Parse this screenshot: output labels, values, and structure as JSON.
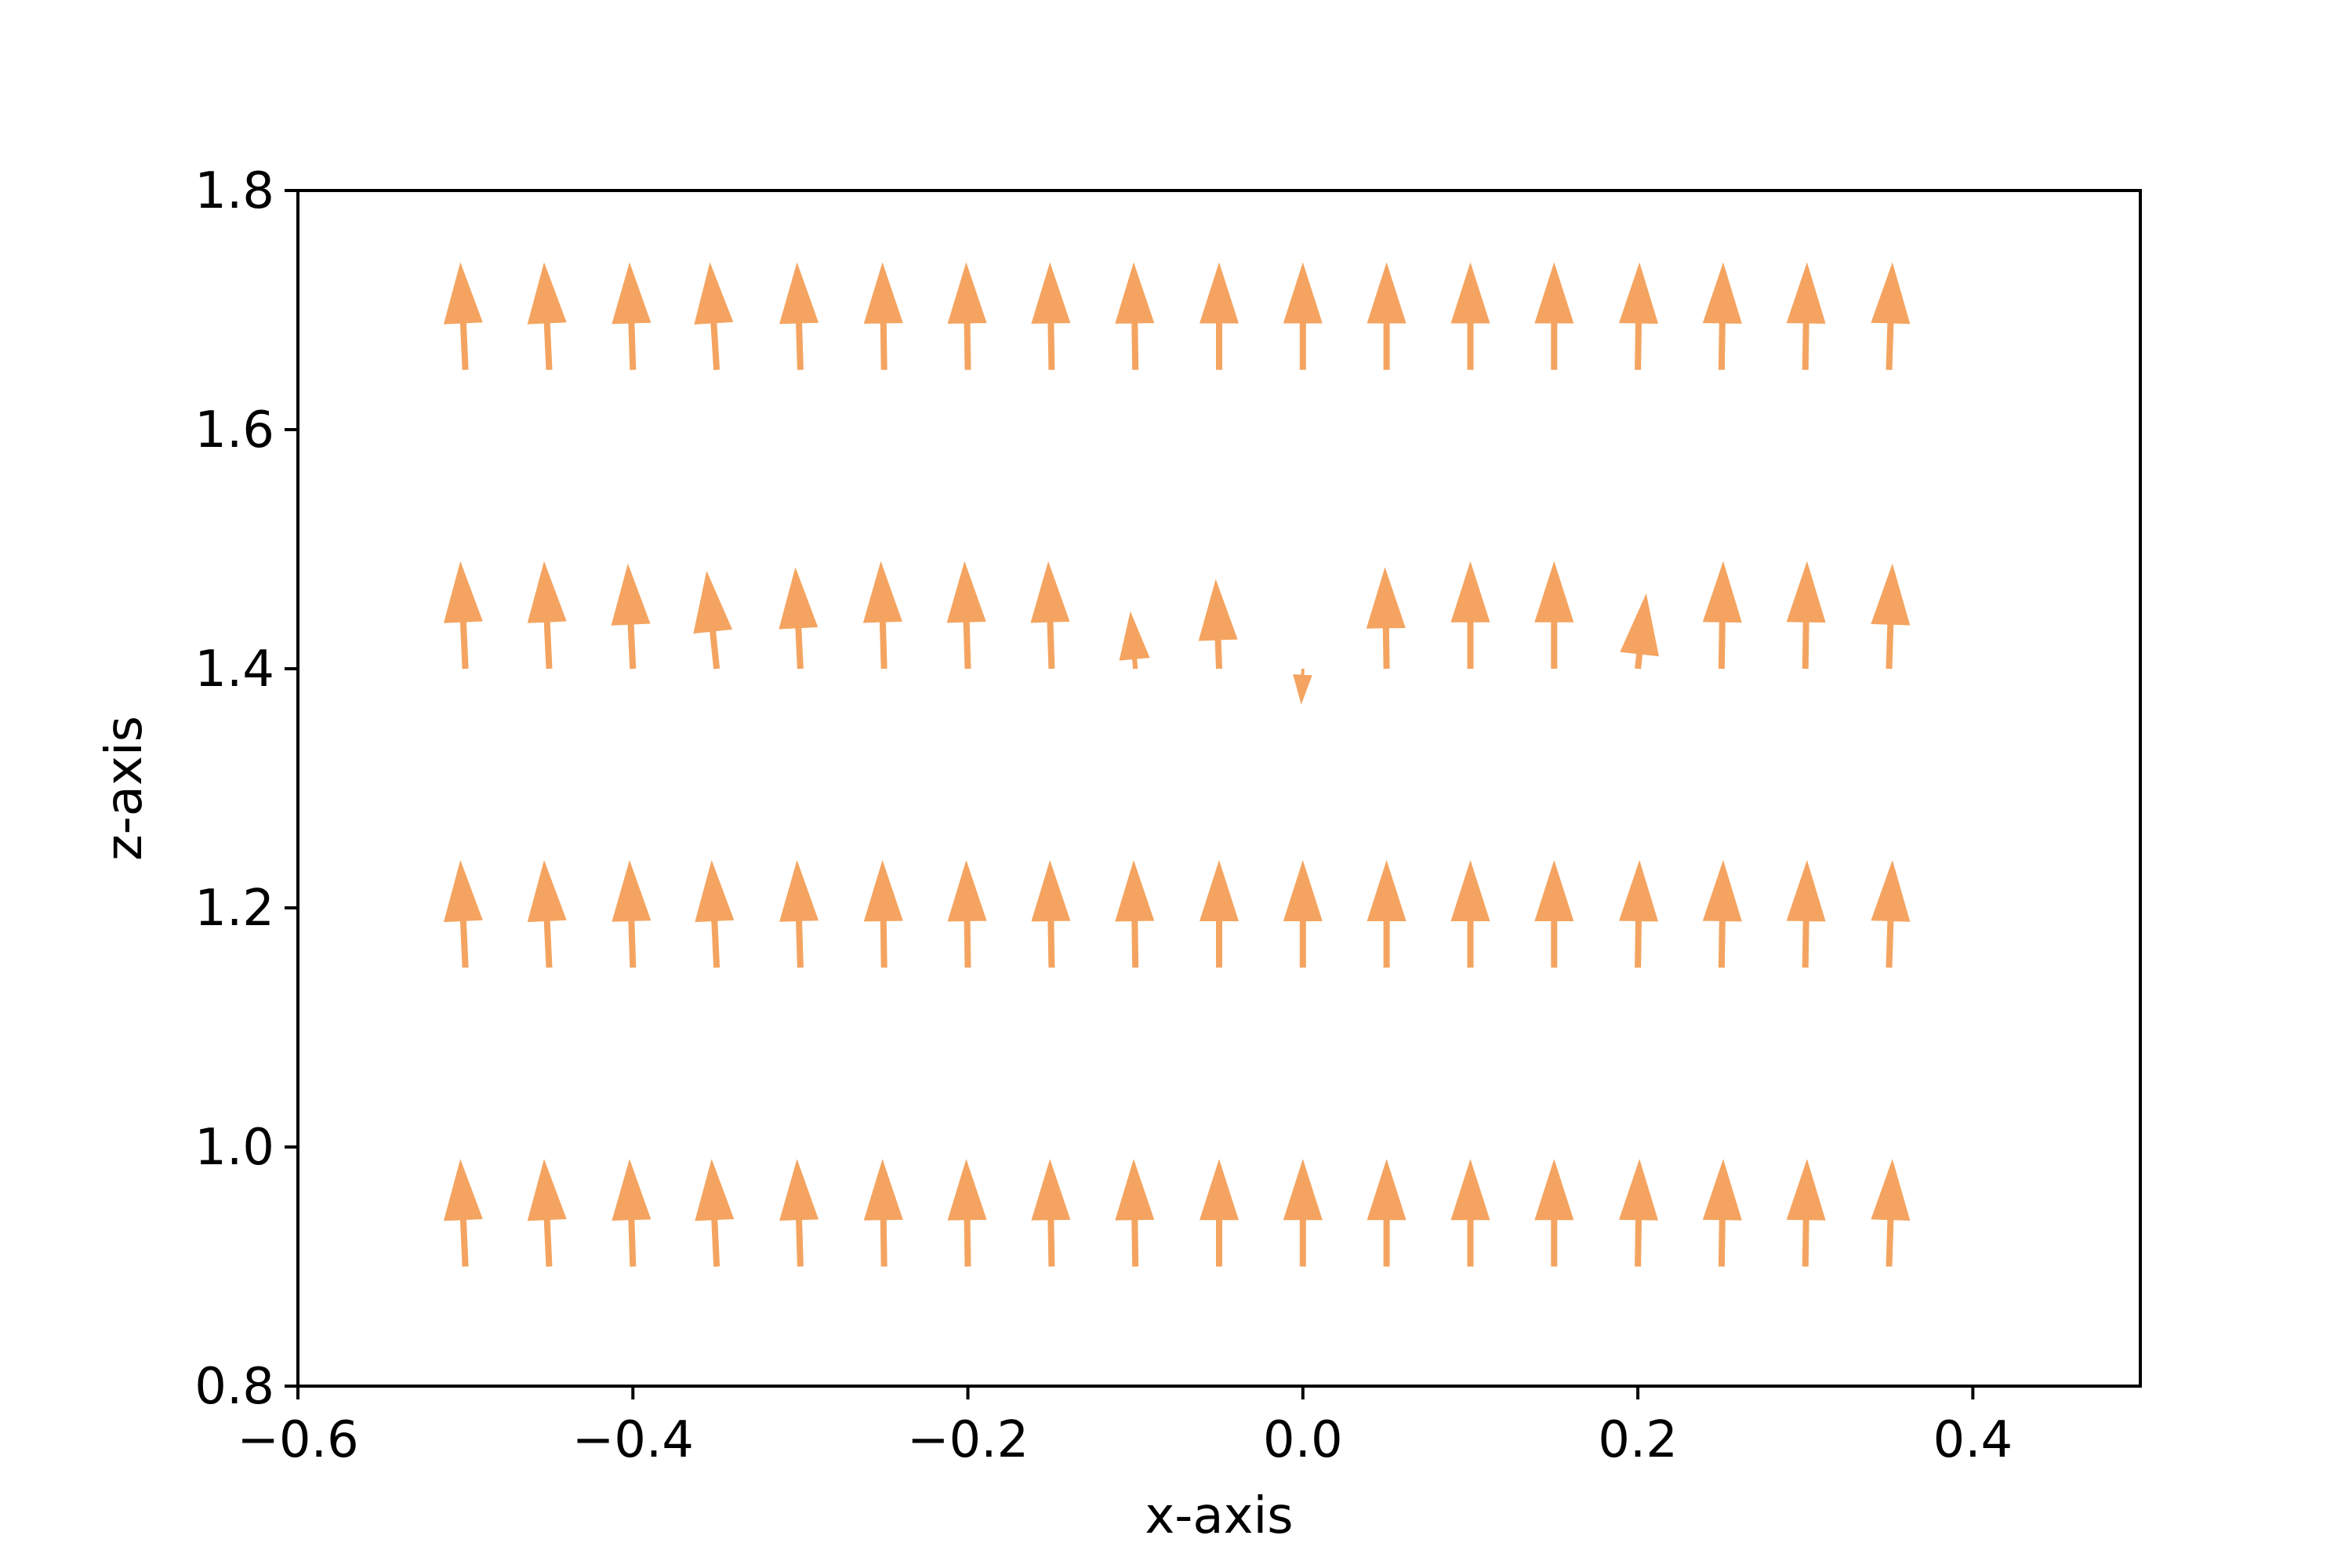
{
  "chart_data": {
    "type": "quiver",
    "xlabel": "x-axis",
    "ylabel": "z-axis",
    "xlim": [
      -0.6,
      0.5
    ],
    "ylim": [
      0.8,
      1.8
    ],
    "xticks": [
      -0.6,
      -0.4,
      -0.2,
      0.0,
      0.2,
      0.4
    ],
    "yticks": [
      0.8,
      1.0,
      1.2,
      1.4,
      1.6,
      1.8
    ],
    "xtick_labels": [
      "−0.6",
      "−0.4",
      "−0.2",
      "0.0",
      "0.2",
      "0.4"
    ],
    "ytick_labels": [
      "0.8",
      "1.0",
      "1.2",
      "1.4",
      "1.6",
      "1.8"
    ],
    "grid": false,
    "arrow_color": "#f4a460",
    "x": [
      -0.5,
      -0.45,
      -0.4,
      -0.35,
      -0.3,
      -0.25,
      -0.2,
      -0.15,
      -0.1,
      -0.05,
      0.0,
      0.05,
      0.1,
      0.15,
      0.2,
      0.25,
      0.3,
      0.35
    ],
    "z": [
      0.9,
      1.15,
      1.4,
      1.65
    ],
    "rows": [
      {
        "z": 0.9,
        "u": [
          -0.003,
          -0.003,
          -0.002,
          -0.003,
          -0.002,
          -0.001,
          -0.001,
          -0.001,
          -0.001,
          0.0,
          0.0,
          0.0,
          0.0,
          0.0,
          0.001,
          0.001,
          0.001,
          0.002
        ],
        "w": [
          0.09,
          0.09,
          0.09,
          0.09,
          0.09,
          0.09,
          0.09,
          0.09,
          0.09,
          0.09,
          0.09,
          0.09,
          0.09,
          0.09,
          0.09,
          0.09,
          0.09,
          0.09
        ]
      },
      {
        "z": 1.15,
        "u": [
          -0.003,
          -0.003,
          -0.002,
          -0.003,
          -0.002,
          -0.001,
          -0.001,
          -0.001,
          -0.001,
          0.0,
          0.0,
          0.0,
          0.0,
          0.0,
          0.001,
          0.001,
          0.001,
          0.002
        ],
        "w": [
          0.09,
          0.09,
          0.09,
          0.09,
          0.09,
          0.09,
          0.09,
          0.09,
          0.09,
          0.09,
          0.09,
          0.09,
          0.09,
          0.09,
          0.09,
          0.09,
          0.09,
          0.09
        ]
      },
      {
        "z": 1.4,
        "u": [
          -0.003,
          -0.003,
          -0.003,
          -0.006,
          -0.003,
          -0.002,
          -0.002,
          -0.002,
          -0.003,
          -0.002,
          -0.001,
          -0.001,
          0.0,
          0.0,
          0.005,
          0.001,
          0.001,
          0.002
        ],
        "w": [
          0.09,
          0.09,
          0.088,
          0.082,
          0.085,
          0.09,
          0.09,
          0.09,
          0.048,
          0.075,
          -0.03,
          0.085,
          0.09,
          0.09,
          0.063,
          0.09,
          0.09,
          0.088
        ]
      },
      {
        "z": 1.65,
        "u": [
          -0.003,
          -0.003,
          -0.002,
          -0.004,
          -0.002,
          -0.001,
          -0.001,
          -0.001,
          -0.001,
          0.0,
          0.0,
          0.0,
          0.0,
          0.0,
          0.001,
          0.001,
          0.001,
          0.002
        ],
        "w": [
          0.09,
          0.09,
          0.09,
          0.09,
          0.09,
          0.09,
          0.09,
          0.09,
          0.09,
          0.09,
          0.09,
          0.09,
          0.09,
          0.09,
          0.09,
          0.09,
          0.09,
          0.09
        ]
      }
    ]
  }
}
